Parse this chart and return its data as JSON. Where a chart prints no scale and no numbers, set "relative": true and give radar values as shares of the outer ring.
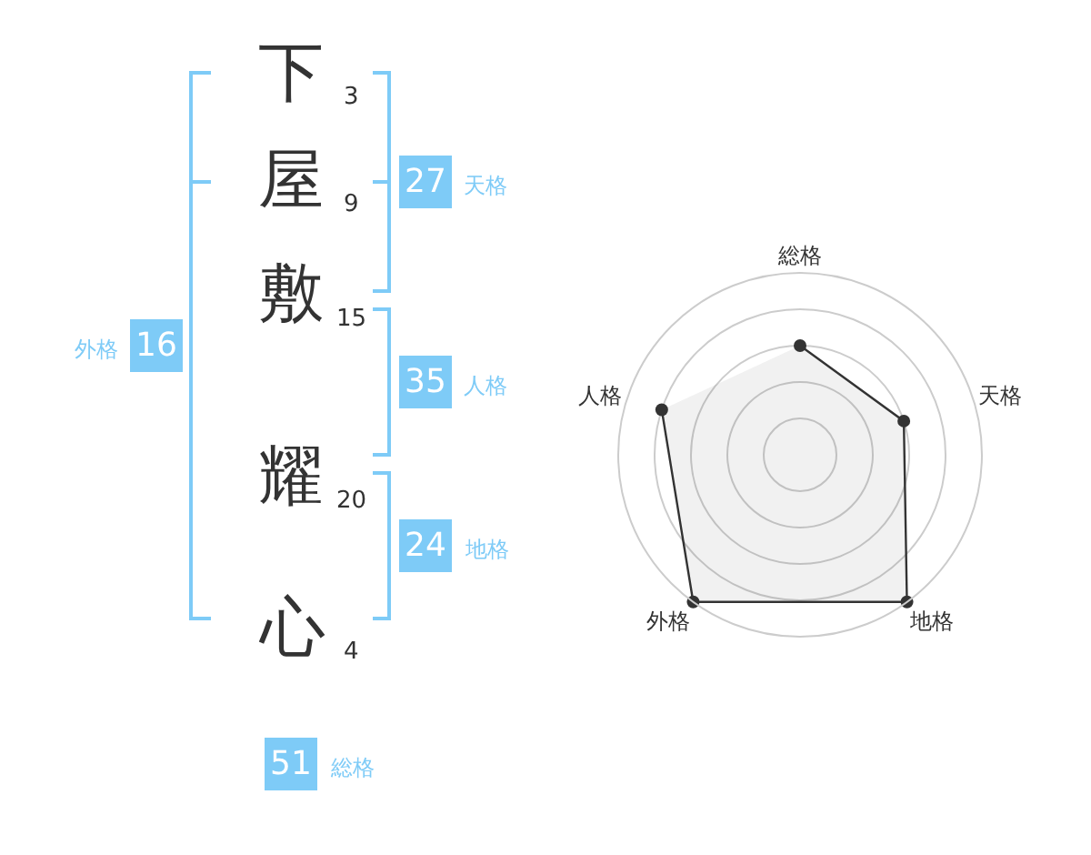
{
  "chart_data": [
    {
      "type": "other",
      "categories": [
        "下",
        "屋",
        "敷",
        "耀",
        "心"
      ],
      "values": [
        3,
        9,
        15,
        20,
        4
      ],
      "data_labels": true,
      "color": "#333333"
    },
    {
      "type": "other",
      "categories": [
        "天格",
        "人格",
        "地格",
        "外格",
        "総格"
      ],
      "values": [
        27,
        35,
        24,
        16,
        51
      ],
      "data_labels": true,
      "color": "#7ecbf7"
    },
    {
      "type": "radar",
      "categories": [
        "総格",
        "天格",
        "地格",
        "外格",
        "人格"
      ],
      "relative": true,
      "grid": true,
      "marker": "circle",
      "series": [
        {
          "color": "#333333",
          "values": [
            0.6,
            0.6,
            1,
            1,
            0.8
          ]
        }
      ]
    }
  ]
}
